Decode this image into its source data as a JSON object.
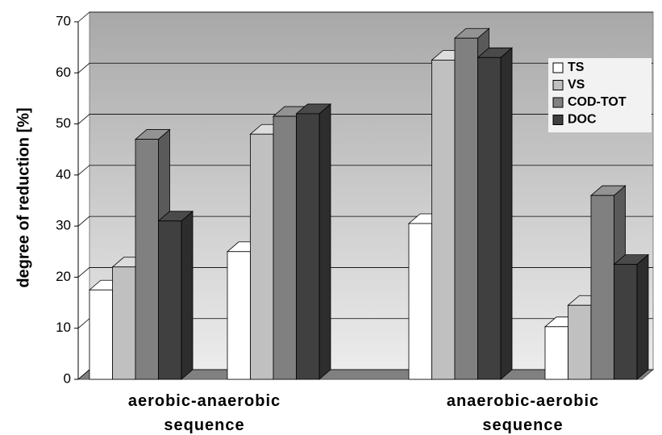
{
  "chart_data": {
    "type": "bar3d",
    "y_label": "degree of reduction [%]",
    "categories": [
      "aerobic-anaerobic sequence",
      null,
      "anaerobic-aerobic sequence",
      null
    ],
    "series": [
      {
        "name": "TS",
        "color": "#ffffff",
        "values": [
          17.5,
          25,
          30.5,
          10.3
        ]
      },
      {
        "name": "VS",
        "color": "#c0c0c0",
        "values": [
          22,
          48,
          62.5,
          14.5
        ]
      },
      {
        "name": "COD-TOT",
        "color": "#808080",
        "values": [
          47,
          51.5,
          66.8,
          36
        ]
      },
      {
        "name": "DOC",
        "color": "#404040",
        "values": [
          31,
          52,
          63,
          22.5
        ]
      }
    ],
    "ylim": [
      0,
      70
    ],
    "yticks": [
      0,
      10,
      20,
      30,
      40,
      50,
      60,
      70
    ],
    "grid": true,
    "legend": "upper right"
  }
}
